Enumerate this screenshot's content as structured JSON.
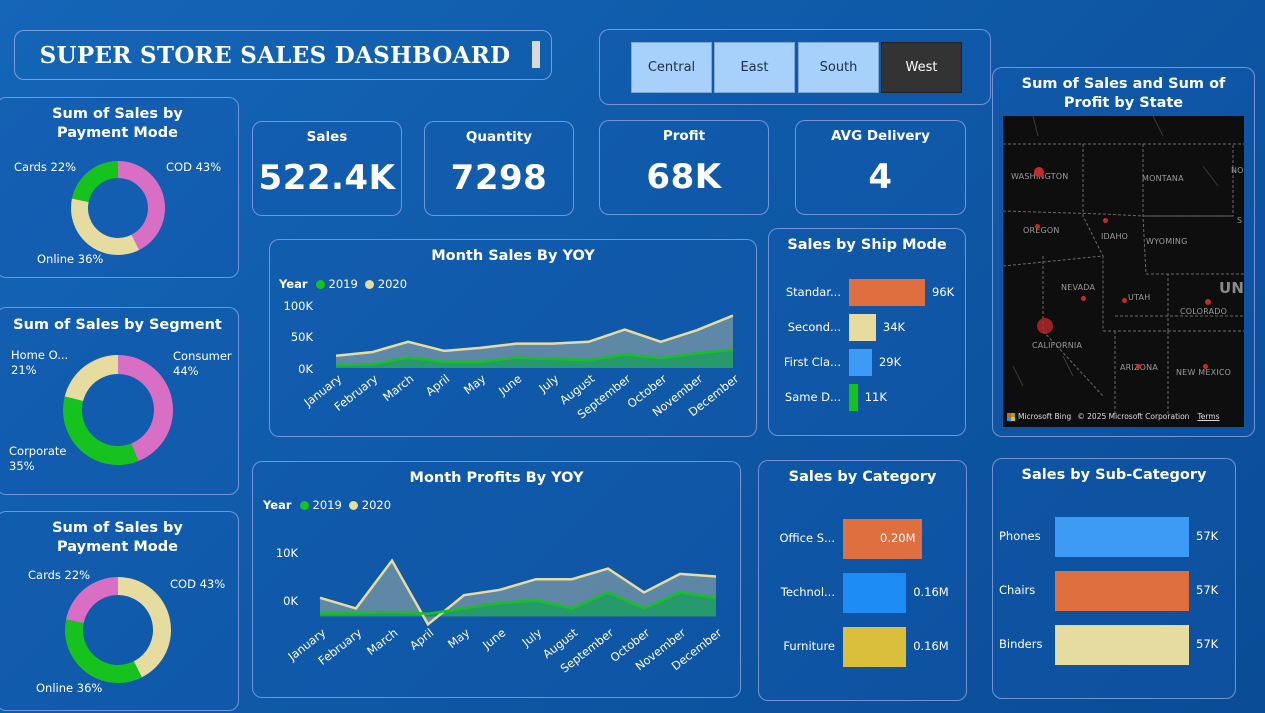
{
  "dashboard": {
    "title": "SUPER STORE SALES DASHBOARD"
  },
  "slicer": {
    "options": [
      "Central",
      "East",
      "South",
      "West"
    ],
    "selected": "West"
  },
  "kpis": [
    {
      "label": "Sales",
      "value": "522.4K"
    },
    {
      "label": "Quantity",
      "value": "7298"
    },
    {
      "label": "Profit",
      "value": "68K"
    },
    {
      "label": "AVG Delivery",
      "value": "4"
    }
  ],
  "payment_mode_1": {
    "title": "Sum of Sales by Payment Mode",
    "labels": [
      "Cards 22%",
      "COD 43%",
      "Online 36%"
    ]
  },
  "segment": {
    "title": "Sum of Sales by Segment",
    "labels": {
      "home": "Home O... 21%",
      "consumer": "Consumer 44%",
      "corporate": "Corporate 35%"
    }
  },
  "payment_mode_2": {
    "title": "Sum of Sales by Payment Mode",
    "labels": [
      "Cards 22%",
      "COD 43%",
      "Online 36%"
    ]
  },
  "month_sales": {
    "title": "Month Sales By YOY",
    "legend_title": "Year",
    "yticks": [
      "100K",
      "50K",
      "0K"
    ]
  },
  "month_profits": {
    "title": "Month Profits By YOY",
    "legend_title": "Year",
    "yticks": [
      "10K",
      "0K"
    ]
  },
  "ship_mode": {
    "title": "Sales by Ship Mode"
  },
  "category": {
    "title": "Sales by Category"
  },
  "subcategory": {
    "title": "Sales by Sub-Category"
  },
  "map": {
    "title": "Sum of Sales and Sum of Profit by State",
    "states": [
      "WASHINGTON",
      "MONTANA",
      "NO",
      "OREGON",
      "IDAHO",
      "WYOMING",
      "NEVADA",
      "UTAH",
      "COLORADO",
      "CALIFORNIA",
      "ARIZONA",
      "NEW MEXICO",
      "S",
      "UN"
    ],
    "attribution": {
      "brand": "Microsoft Bing",
      "copyright": "© 2025 Microsoft Corporation",
      "terms": "Terms"
    }
  },
  "colors": {
    "pink": "#d96fc4",
    "green": "#16c21e",
    "cream": "#e6dca0",
    "orange": "#df6f3e",
    "blue": "#3e9bf5",
    "gold": "#d9bf3c"
  },
  "chart_data": [
    {
      "type": "pie",
      "title": "Sum of Sales by Payment Mode",
      "categories": [
        "COD",
        "Online",
        "Cards"
      ],
      "values": [
        43,
        36,
        22
      ],
      "unit": "%"
    },
    {
      "type": "pie",
      "title": "Sum of Sales by Segment",
      "categories": [
        "Consumer",
        "Corporate",
        "Home O..."
      ],
      "values": [
        44,
        35,
        21
      ],
      "unit": "%"
    },
    {
      "type": "pie",
      "title": "Sum of Sales by Payment Mode",
      "categories": [
        "COD",
        "Online",
        "Cards"
      ],
      "values": [
        43,
        36,
        22
      ],
      "unit": "%"
    },
    {
      "type": "area",
      "title": "Month Sales By YOY",
      "legend_title": "Year",
      "categories": [
        "January",
        "February",
        "March",
        "April",
        "May",
        "June",
        "July",
        "August",
        "September",
        "October",
        "November",
        "December"
      ],
      "ylim": [
        0,
        100000
      ],
      "series": [
        {
          "name": "2019",
          "values": [
            5000,
            6000,
            17000,
            10000,
            10000,
            17000,
            15000,
            13000,
            22000,
            16000,
            24000,
            30000
          ]
        },
        {
          "name": "2020",
          "values": [
            20000,
            26000,
            43000,
            28000,
            33000,
            40000,
            40000,
            43000,
            63000,
            43000,
            62000,
            86000
          ]
        }
      ]
    },
    {
      "type": "area",
      "title": "Month Profits By YOY",
      "legend_title": "Year",
      "categories": [
        "January",
        "February",
        "March",
        "April",
        "May",
        "June",
        "July",
        "August",
        "September",
        "October",
        "November",
        "December"
      ],
      "ylim": [
        -2000,
        14000
      ],
      "series": [
        {
          "name": "2019",
          "values": [
            600,
            600,
            800,
            500,
            1500,
            2500,
            3000,
            1500,
            4500,
            1500,
            4500,
            3500
          ]
        },
        {
          "name": "2020",
          "values": [
            3500,
            1500,
            10500,
            -1500,
            4000,
            5000,
            7000,
            7000,
            9000,
            4500,
            8000,
            7500
          ]
        }
      ]
    },
    {
      "type": "bar",
      "orientation": "horizontal",
      "title": "Sales by Ship Mode",
      "categories": [
        "Standar...",
        "Second...",
        "First Cla...",
        "Same D..."
      ],
      "values": [
        96000,
        34000,
        29000,
        11000
      ],
      "value_labels": [
        "96K",
        "34K",
        "29K",
        "11K"
      ]
    },
    {
      "type": "bar",
      "orientation": "horizontal",
      "title": "Sales by Category",
      "categories": [
        "Office S...",
        "Technol...",
        "Furniture"
      ],
      "values": [
        200000,
        160000,
        160000
      ],
      "value_labels": [
        "0.20M",
        "0.16M",
        "0.16M"
      ]
    },
    {
      "type": "bar",
      "orientation": "horizontal",
      "title": "Sales by Sub-Category",
      "categories": [
        "Phones",
        "Chairs",
        "Binders"
      ],
      "values": [
        57000,
        57000,
        57000
      ],
      "value_labels": [
        "57K",
        "57K",
        "57K"
      ]
    }
  ]
}
